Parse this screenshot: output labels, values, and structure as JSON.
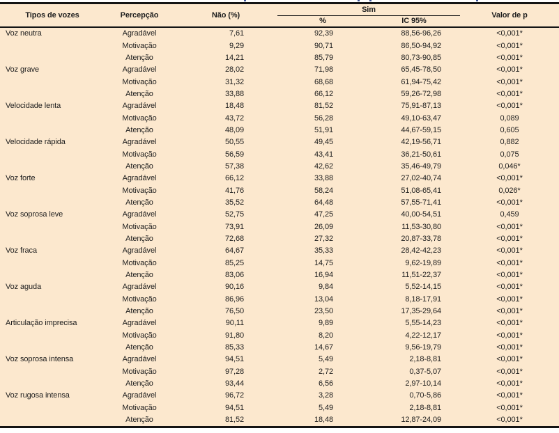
{
  "colors": {
    "table_background": "#fce8ce",
    "rule_color": "#141414",
    "text_color": "#1d1d1d",
    "caption_fragment_color": "#3d5396"
  },
  "table": {
    "headers": {
      "col_tipos": "Tipos de vozes",
      "col_percepcao": "Percepção",
      "col_nao": "Não (%)",
      "col_sim": "Sim",
      "col_sim_pct": "%",
      "col_sim_ic": "IC 95%",
      "col_p": "Valor de p"
    },
    "groups": [
      {
        "tipo": "Voz neutra",
        "rows": [
          {
            "percepcao": "Agradável",
            "nao": "7,61",
            "sim_pct": "92,39",
            "ic95": "88,56-96,26",
            "p": "<0,001*"
          },
          {
            "percepcao": "Motivação",
            "nao": "9,29",
            "sim_pct": "90,71",
            "ic95": "86,50-94,92",
            "p": "<0,001*"
          },
          {
            "percepcao": "Atenção",
            "nao": "14,21",
            "sim_pct": "85,79",
            "ic95": "80,73-90,85",
            "p": "<0,001*"
          }
        ]
      },
      {
        "tipo": "Voz grave",
        "rows": [
          {
            "percepcao": "Agradável",
            "nao": "28,02",
            "sim_pct": "71,98",
            "ic95": "65,45-78,50",
            "p": "<0,001*"
          },
          {
            "percepcao": "Motivação",
            "nao": "31,32",
            "sim_pct": "68,68",
            "ic95": "61,94-75,42",
            "p": "<0,001*"
          },
          {
            "percepcao": "Atenção",
            "nao": "33,88",
            "sim_pct": "66,12",
            "ic95": "59,26-72,98",
            "p": "<0,001*"
          }
        ]
      },
      {
        "tipo": "Velocidade lenta",
        "rows": [
          {
            "percepcao": "Agradável",
            "nao": "18,48",
            "sim_pct": "81,52",
            "ic95": "75,91-87,13",
            "p": "<0,001*"
          },
          {
            "percepcao": "Motivação",
            "nao": "43,72",
            "sim_pct": "56,28",
            "ic95": "49,10-63,47",
            "p": "0,089"
          },
          {
            "percepcao": "Atenção",
            "nao": "48,09",
            "sim_pct": "51,91",
            "ic95": "44,67-59,15",
            "p": "0,605"
          }
        ]
      },
      {
        "tipo": "Velocidade rápida",
        "rows": [
          {
            "percepcao": "Agradável",
            "nao": "50,55",
            "sim_pct": "49,45",
            "ic95": "42,19-56,71",
            "p": "0,882"
          },
          {
            "percepcao": "Motivação",
            "nao": "56,59",
            "sim_pct": "43,41",
            "ic95": "36,21-50,61",
            "p": "0,075"
          },
          {
            "percepcao": "Atenção",
            "nao": "57,38",
            "sim_pct": "42,62",
            "ic95": "35,46-49,79",
            "p": "0,046*"
          }
        ]
      },
      {
        "tipo": "Voz forte",
        "rows": [
          {
            "percepcao": "Agradável",
            "nao": "66,12",
            "sim_pct": "33,88",
            "ic95": "27,02-40,74",
            "p": "<0,001*"
          },
          {
            "percepcao": "Motivação",
            "nao": "41,76",
            "sim_pct": "58,24",
            "ic95": "51,08-65,41",
            "p": "0,026*"
          },
          {
            "percepcao": "Atenção",
            "nao": "35,52",
            "sim_pct": "64,48",
            "ic95": "57,55-71,41",
            "p": "<0,001*"
          }
        ]
      },
      {
        "tipo": "Voz soprosa leve",
        "rows": [
          {
            "percepcao": "Agradável",
            "nao": "52,75",
            "sim_pct": "47,25",
            "ic95": "40,00-54,51",
            "p": "0,459"
          },
          {
            "percepcao": "Motivação",
            "nao": "73,91",
            "sim_pct": "26,09",
            "ic95": "11,53-30,80",
            "p": "<0,001*"
          },
          {
            "percepcao": "Atenção",
            "nao": "72,68",
            "sim_pct": "27,32",
            "ic95": "20,87-33,78",
            "p": "<0,001*"
          }
        ]
      },
      {
        "tipo": "Voz fraca",
        "rows": [
          {
            "percepcao": "Agradável",
            "nao": "64,67",
            "sim_pct": "35,33",
            "ic95": "28,42-42,23",
            "p": "<0,001*"
          },
          {
            "percepcao": "Motivação",
            "nao": "85,25",
            "sim_pct": "14,75",
            "ic95": "9,62-19,89",
            "p": "<0,001*"
          },
          {
            "percepcao": "Atenção",
            "nao": "83,06",
            "sim_pct": "16,94",
            "ic95": "11,51-22,37",
            "p": "<0,001*"
          }
        ]
      },
      {
        "tipo": "Voz aguda",
        "rows": [
          {
            "percepcao": "Agradável",
            "nao": "90,16",
            "sim_pct": "9,84",
            "ic95": "5,52-14,15",
            "p": "<0,001*"
          },
          {
            "percepcao": "Motivação",
            "nao": "86,96",
            "sim_pct": "13,04",
            "ic95": "8,18-17,91",
            "p": "<0,001*"
          },
          {
            "percepcao": "Atenção",
            "nao": "76,50",
            "sim_pct": "23,50",
            "ic95": "17,35-29,64",
            "p": "<0,001*"
          }
        ]
      },
      {
        "tipo": "Articulação imprecisa",
        "rows": [
          {
            "percepcao": "Agradável",
            "nao": "90,11",
            "sim_pct": "9,89",
            "ic95": "5,55-14,23",
            "p": "<0,001*"
          },
          {
            "percepcao": "Motivação",
            "nao": "91,80",
            "sim_pct": "8,20",
            "ic95": "4,22-12,17",
            "p": "<0,001*"
          },
          {
            "percepcao": "Atenção",
            "nao": "85,33",
            "sim_pct": "14,67",
            "ic95": "9,56-19,79",
            "p": "<0,001*"
          }
        ]
      },
      {
        "tipo": "Voz soprosa intensa",
        "rows": [
          {
            "percepcao": "Agradável",
            "nao": "94,51",
            "sim_pct": "5,49",
            "ic95": "2,18-8,81",
            "p": "<0,001*"
          },
          {
            "percepcao": "Motivação",
            "nao": "97,28",
            "sim_pct": "2,72",
            "ic95": "0,37-5,07",
            "p": "<0,001*"
          },
          {
            "percepcao": "Atenção",
            "nao": "93,44",
            "sim_pct": "6,56",
            "ic95": "2,97-10,14",
            "p": "<0,001*"
          }
        ]
      },
      {
        "tipo": "Voz rugosa intensa",
        "rows": [
          {
            "percepcao": "Agradável",
            "nao": "96,72",
            "sim_pct": "3,28",
            "ic95": "0,70-5,86",
            "p": "<0,001*"
          },
          {
            "percepcao": "Motivação",
            "nao": "94,51",
            "sim_pct": "5,49",
            "ic95": "2,18-8,81",
            "p": "<0,001*"
          },
          {
            "percepcao": "Atenção",
            "nao": "81,52",
            "sim_pct": "18,48",
            "ic95": "12,87-24,09",
            "p": "<0,001*"
          }
        ]
      }
    ]
  }
}
